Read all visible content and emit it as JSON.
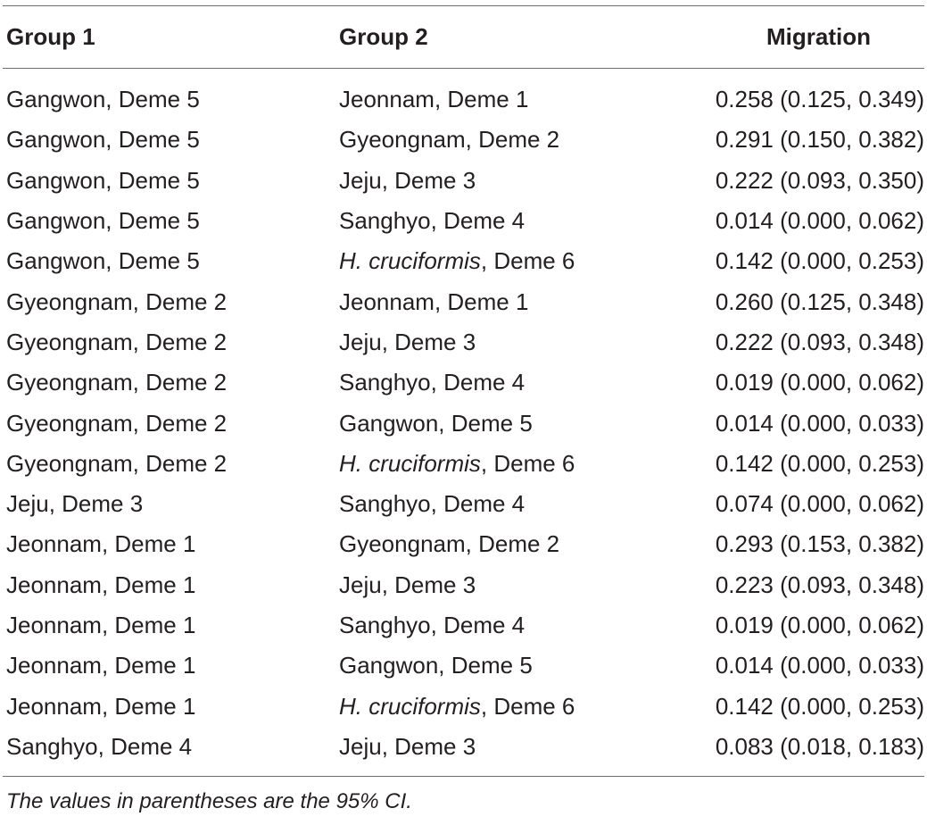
{
  "table": {
    "headers": [
      "Group 1",
      "Group 2",
      "Migration"
    ],
    "rows": [
      {
        "group1": "Gangwon, Deme 5",
        "group2_italic": "",
        "group2": "Jeonnam, Deme 1",
        "migration": "0.258 (0.125, 0.349)"
      },
      {
        "group1": "Gangwon, Deme 5",
        "group2_italic": "",
        "group2": "Gyeongnam, Deme 2",
        "migration": "0.291 (0.150, 0.382)"
      },
      {
        "group1": "Gangwon, Deme 5",
        "group2_italic": "",
        "group2": "Jeju, Deme 3",
        "migration": "0.222 (0.093, 0.350)"
      },
      {
        "group1": "Gangwon, Deme 5",
        "group2_italic": "",
        "group2": "Sanghyo, Deme 4",
        "migration": "0.014 (0.000, 0.062)"
      },
      {
        "group1": "Gangwon, Deme 5",
        "group2_italic": "H. cruciformis",
        "group2": ", Deme 6",
        "migration": "0.142 (0.000, 0.253)"
      },
      {
        "group1": "Gyeongnam, Deme 2",
        "group2_italic": "",
        "group2": "Jeonnam, Deme 1",
        "migration": "0.260 (0.125, 0.348)"
      },
      {
        "group1": "Gyeongnam, Deme 2",
        "group2_italic": "",
        "group2": "Jeju, Deme 3",
        "migration": "0.222 (0.093, 0.348)"
      },
      {
        "group1": "Gyeongnam, Deme 2",
        "group2_italic": "",
        "group2": "Sanghyo, Deme 4",
        "migration": "0.019 (0.000, 0.062)"
      },
      {
        "group1": "Gyeongnam, Deme 2",
        "group2_italic": "",
        "group2": "Gangwon, Deme 5",
        "migration": "0.014 (0.000, 0.033)"
      },
      {
        "group1": "Gyeongnam, Deme 2",
        "group2_italic": "H. cruciformis",
        "group2": ", Deme 6",
        "migration": "0.142 (0.000, 0.253)"
      },
      {
        "group1": "Jeju, Deme 3",
        "group2_italic": "",
        "group2": "Sanghyo, Deme 4",
        "migration": "0.074 (0.000, 0.062)"
      },
      {
        "group1": "Jeonnam, Deme 1",
        "group2_italic": "",
        "group2": "Gyeongnam, Deme 2",
        "migration": "0.293 (0.153, 0.382)"
      },
      {
        "group1": "Jeonnam, Deme 1",
        "group2_italic": "",
        "group2": "Jeju, Deme 3",
        "migration": "0.223 (0.093, 0.348)"
      },
      {
        "group1": "Jeonnam, Deme 1",
        "group2_italic": "",
        "group2": "Sanghyo, Deme 4",
        "migration": "0.019 (0.000, 0.062)"
      },
      {
        "group1": "Jeonnam, Deme 1",
        "group2_italic": "",
        "group2": "Gangwon, Deme 5",
        "migration": "0.014 (0.000, 0.033)"
      },
      {
        "group1": "Jeonnam, Deme 1",
        "group2_italic": "H. cruciformis",
        "group2": ", Deme 6",
        "migration": "0.142 (0.000, 0.253)"
      },
      {
        "group1": "Sanghyo, Deme 4",
        "group2_italic": "",
        "group2": "Jeju, Deme 3",
        "migration": "0.083 (0.018, 0.183)"
      }
    ],
    "footnote": "The values in parentheses are the 95% CI."
  }
}
